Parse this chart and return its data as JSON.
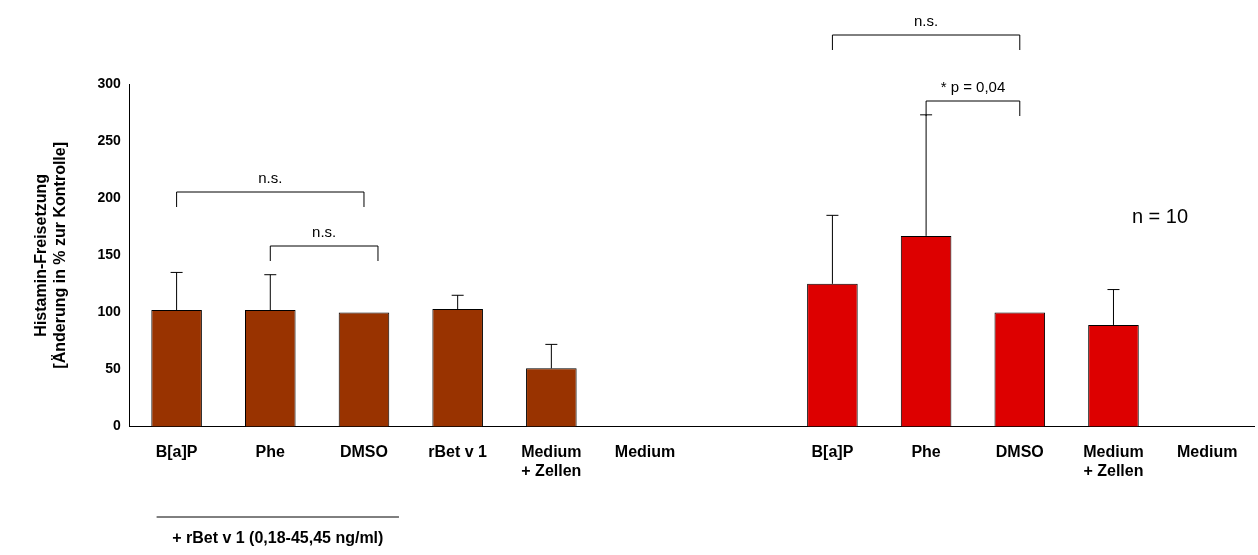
{
  "chart_data": {
    "type": "bar",
    "ylabel": "Histamin-Freisetzung\n[Änderung in % zur Kontrolle]",
    "categories": [
      "B[a]P",
      "Phe",
      "DMSO",
      "rBet v 1",
      "Medium\n+ Zellen",
      "Medium",
      null,
      "B[a]P",
      "Phe",
      "DMSO",
      "Medium\n+ Zellen",
      "Medium"
    ],
    "values": [
      102,
      102,
      100,
      103,
      51,
      0,
      null,
      125,
      167,
      100,
      89,
      0
    ],
    "errors": [
      [
        102,
        135
      ],
      [
        102,
        133
      ],
      null,
      [
        103,
        115
      ],
      [
        51,
        72
      ],
      null,
      null,
      [
        125,
        185
      ],
      [
        167,
        273
      ],
      null,
      [
        89,
        120
      ],
      null
    ],
    "colors": [
      "#993300",
      "#993300",
      "#993300",
      "#993300",
      "#993300",
      "#993300",
      null,
      "#dd0000",
      "#dd0000",
      "#dd0000",
      "#dd0000",
      "#dd0000"
    ],
    "ylim": [
      0,
      300
    ],
    "yticks": [
      0,
      50,
      100,
      150,
      200,
      250,
      300
    ],
    "grid": false,
    "legend": false,
    "annotations": [
      "n.s.",
      "n.s.",
      "n.s.",
      "* p = 0,04",
      "n = 10",
      "+ rBet v 1 (0,18-45,45 ng/ml)"
    ]
  }
}
